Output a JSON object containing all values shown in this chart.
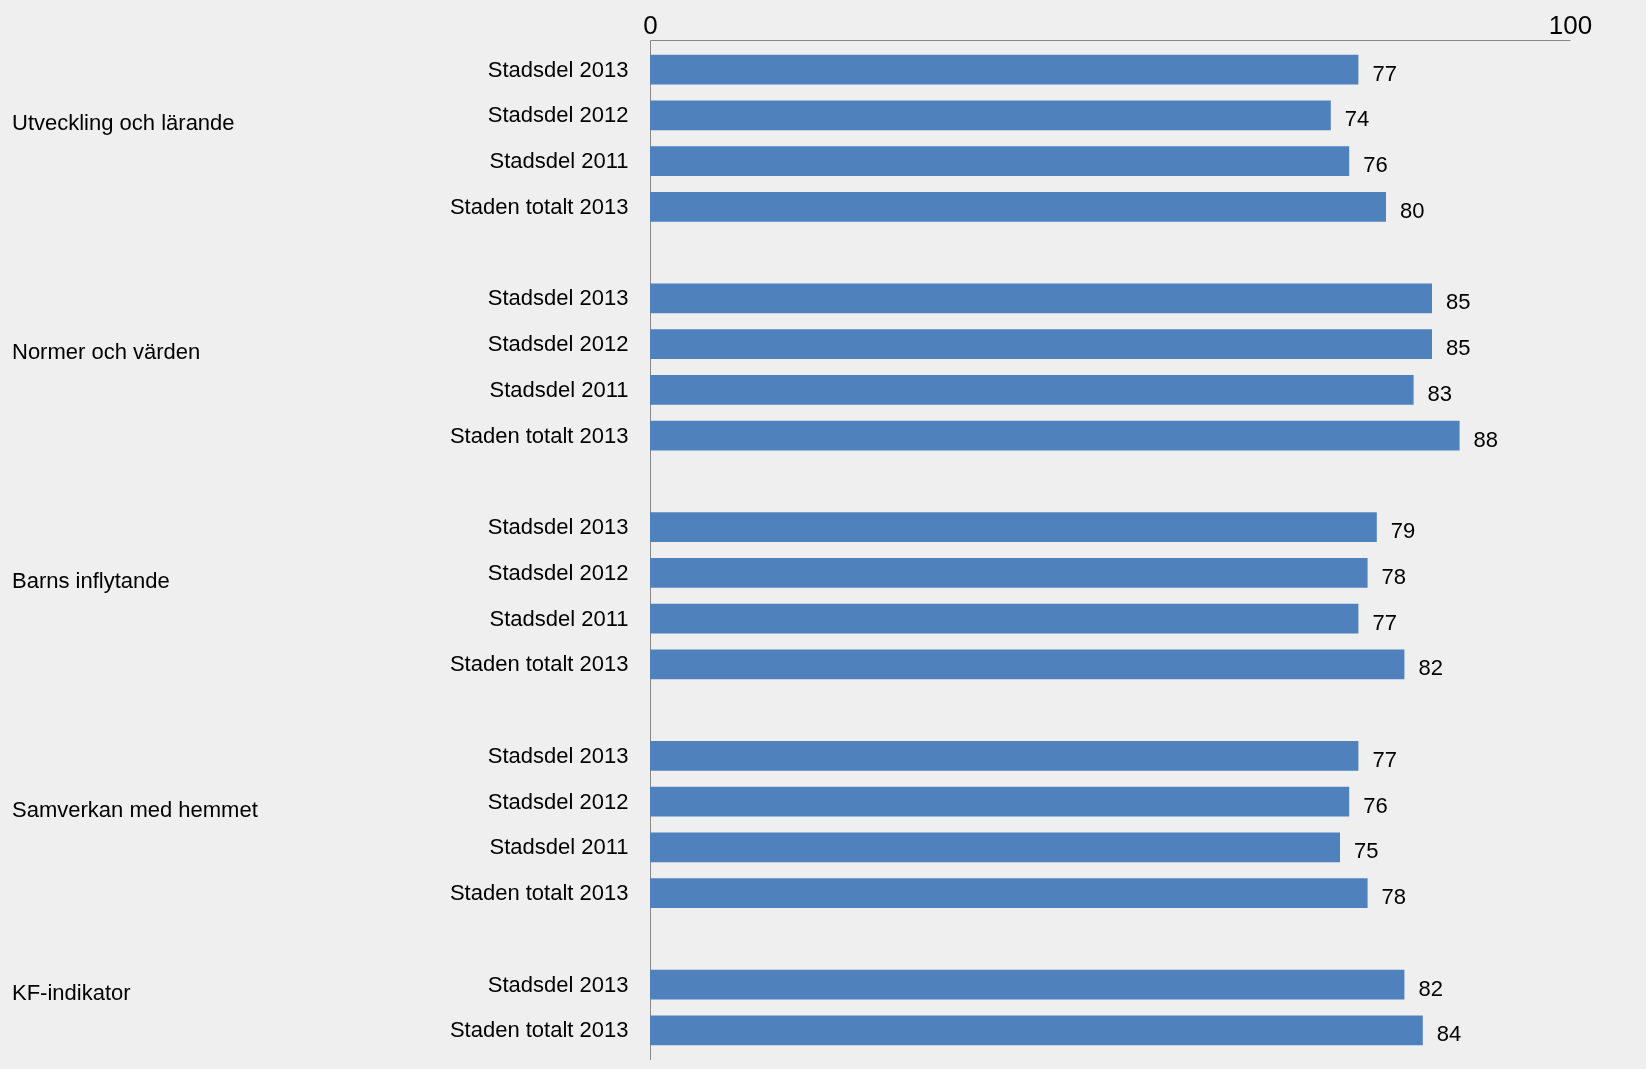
{
  "chart_data": {
    "type": "bar",
    "orientation": "horizontal",
    "categories": [
      "Stadsdel 2013",
      "Stadsdel 2012",
      "Stadsdel 2011",
      "Staden totalt 2013",
      null,
      "Stadsdel 2013",
      "Stadsdel 2012",
      "Stadsdel 2011",
      "Staden totalt 2013",
      null,
      "Stadsdel 2013",
      "Stadsdel 2012",
      "Stadsdel 2011",
      "Staden totalt 2013",
      null,
      "Stadsdel 2013",
      "Stadsdel 2012",
      "Stadsdel 2011",
      "Staden totalt 2013",
      null,
      "Stadsdel 2013",
      "Staden totalt 2013"
    ],
    "values": [
      77,
      74,
      76,
      80,
      null,
      85,
      85,
      83,
      88,
      null,
      79,
      78,
      77,
      82,
      null,
      77,
      76,
      75,
      78,
      null,
      82,
      84
    ],
    "color": "#4f81bd",
    "xlim": [
      0,
      100
    ],
    "xticks": [
      0,
      100
    ],
    "annotations": [
      "Utveckling och lärande",
      "Normer och värden",
      "Barns inflytande",
      "Samverkan med hemmet",
      "KF-indikator"
    ],
    "data_labels": true
  }
}
